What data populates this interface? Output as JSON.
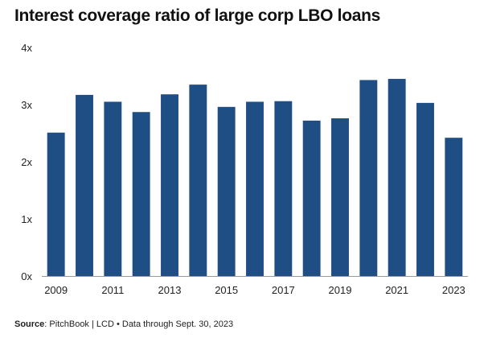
{
  "title": "Interest coverage ratio of large corp LBO loans",
  "source": {
    "label": "Source",
    "text": ": PitchBook | LCD • Data through Sept. 30, 2023"
  },
  "colors": {
    "bar": "#1f4e85",
    "axis": "#999999",
    "text": "#222222"
  },
  "chart_data": {
    "type": "bar",
    "title": "Interest coverage ratio of large corp LBO loans",
    "xlabel": "",
    "ylabel": "",
    "categories": [
      "2009",
      "2010",
      "2011",
      "2012",
      "2013",
      "2014",
      "2015",
      "2016",
      "2017",
      "2018",
      "2019",
      "2020",
      "2021",
      "2022",
      "2023"
    ],
    "values": [
      2.51,
      3.17,
      3.05,
      2.87,
      3.18,
      3.35,
      2.96,
      3.05,
      3.06,
      2.72,
      2.76,
      3.43,
      3.45,
      3.03,
      2.42
    ],
    "x_tick_labels": [
      "2009",
      "",
      "2011",
      "",
      "2013",
      "",
      "2015",
      "",
      "2017",
      "",
      "2019",
      "",
      "2021",
      "",
      "2023"
    ],
    "y_ticks": [
      0,
      1,
      2,
      3,
      4
    ],
    "y_tick_labels": [
      "0x",
      "1x",
      "2x",
      "3x",
      "4x"
    ],
    "ylim": [
      0,
      4
    ],
    "grid": false,
    "legend": "none"
  }
}
